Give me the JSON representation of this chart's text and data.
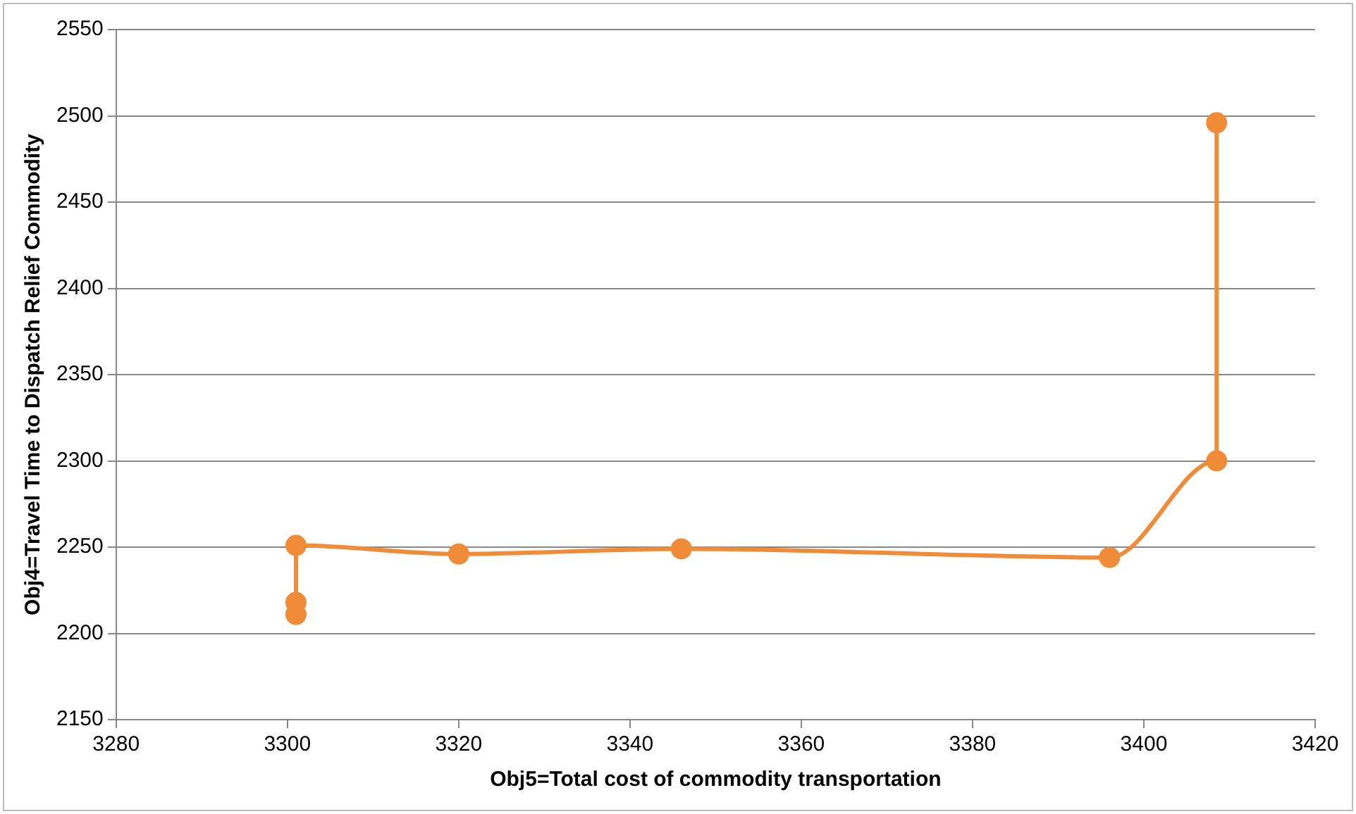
{
  "chart_data": {
    "type": "line",
    "xlabel": "Obj5=Total cost of commodity transportation",
    "ylabel": "Obj4=Travel Time to Dispatch Relief Commodity",
    "x": [
      3301,
      3301,
      3301,
      3320,
      3346,
      3396,
      3408.5,
      3408.5
    ],
    "series": [
      {
        "color": "#f08c38",
        "values": [
          2211,
          2218,
          2251,
          2246,
          2249,
          2244,
          2300,
          2496
        ]
      }
    ],
    "xlim": [
      3280,
      3420
    ],
    "xticks": [
      3280,
      3300,
      3320,
      3340,
      3360,
      3380,
      3400,
      3420
    ],
    "ylim": [
      2150,
      2550
    ],
    "yticks": [
      2150,
      2200,
      2250,
      2300,
      2350,
      2400,
      2450,
      2500,
      2550
    ],
    "grid": "y",
    "legend": false,
    "marker": "circle",
    "line_style": "solid"
  }
}
